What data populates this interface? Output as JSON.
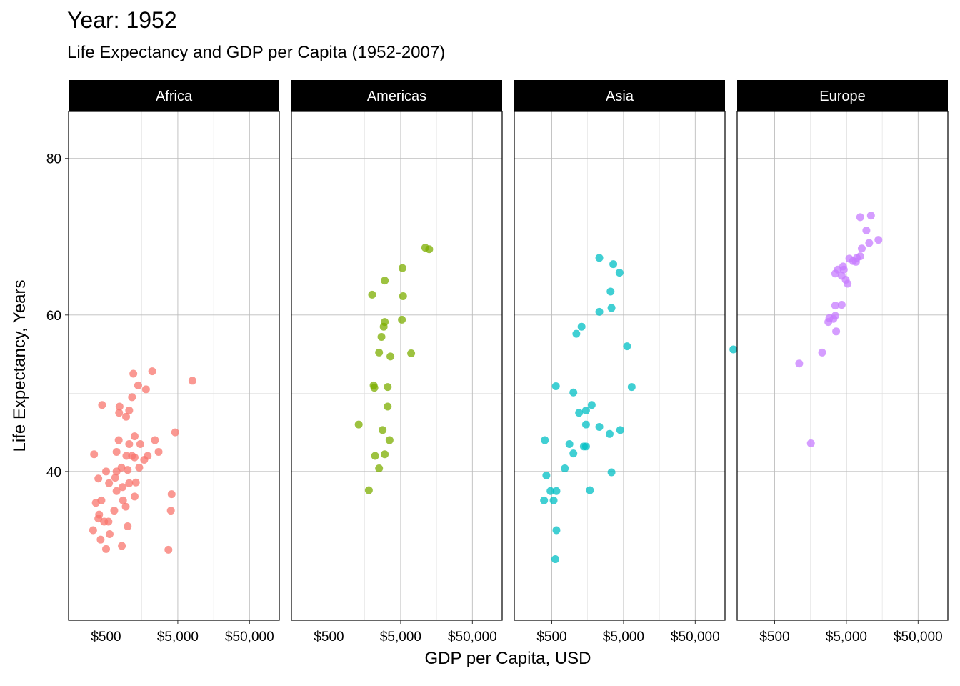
{
  "chart_data": {
    "type": "scatter",
    "title": "Year: 1952",
    "subtitle": "Life Expectancy and GDP per Capita (1952-2007)",
    "xlabel": "GDP per Capita, USD",
    "ylabel": "Life Expectancy, Years",
    "x_scale": "log10",
    "xlim": [
      150,
      130000
    ],
    "ylim": [
      21,
      86
    ],
    "x_ticks": [
      500,
      5000,
      50000
    ],
    "x_tick_labels": [
      "$500",
      "$5,000",
      "$50,000"
    ],
    "y_ticks": [
      40,
      60,
      80
    ],
    "y_tick_labels": [
      "40",
      "60",
      "80"
    ],
    "grid": true,
    "legend": "none",
    "facets": [
      {
        "name": "Africa",
        "color": "#F8766D",
        "points": [
          [
            500,
            30.1
          ],
          [
            420,
            31.3
          ],
          [
            330,
            32.5
          ],
          [
            560,
            32.0
          ],
          [
            1000,
            33.0
          ],
          [
            470,
            33.6
          ],
          [
            540,
            33.6
          ],
          [
            390,
            34.0
          ],
          [
            400,
            34.5
          ],
          [
            650,
            35.0
          ],
          [
            360,
            36.0
          ],
          [
            430,
            36.3
          ],
          [
            940,
            35.5
          ],
          [
            550,
            38.5
          ],
          [
            860,
            36.3
          ],
          [
            1250,
            36.8
          ],
          [
            700,
            37.5
          ],
          [
            390,
            39.1
          ],
          [
            670,
            39.2
          ],
          [
            850,
            38.0
          ],
          [
            1050,
            38.5
          ],
          [
            1300,
            38.6
          ],
          [
            500,
            40.0
          ],
          [
            700,
            40.0
          ],
          [
            820,
            40.5
          ],
          [
            1000,
            40.2
          ],
          [
            1450,
            40.5
          ],
          [
            960,
            42.0
          ],
          [
            1150,
            42.0
          ],
          [
            340,
            42.2
          ],
          [
            1250,
            41.8
          ],
          [
            1900,
            42.0
          ],
          [
            700,
            42.5
          ],
          [
            1050,
            43.5
          ],
          [
            750,
            44.0
          ],
          [
            1250,
            44.5
          ],
          [
            1500,
            43.5
          ],
          [
            2700,
            42.5
          ],
          [
            2400,
            44.0
          ],
          [
            1700,
            41.5
          ],
          [
            760,
            47.5
          ],
          [
            950,
            47.0
          ],
          [
            1050,
            47.8
          ],
          [
            770,
            48.3
          ],
          [
            1400,
            51.0
          ],
          [
            1150,
            49.5
          ],
          [
            1800,
            50.5
          ],
          [
            440,
            48.5
          ],
          [
            2200,
            52.8
          ],
          [
            1200,
            52.5
          ],
          [
            4600,
            45.0
          ],
          [
            4100,
            37.1
          ],
          [
            3700,
            30.0
          ],
          [
            8000,
            51.6
          ],
          [
            830,
            30.5
          ],
          [
            4000,
            35.0
          ]
        ]
      },
      {
        "name": "Americas",
        "color": "#7CAE00",
        "points": [
          [
            1800,
            37.6
          ],
          [
            2500,
            40.4
          ],
          [
            2200,
            42.0
          ],
          [
            3000,
            42.2
          ],
          [
            2800,
            45.3
          ],
          [
            1300,
            46.0
          ],
          [
            3300,
            48.3
          ],
          [
            3500,
            44.0
          ],
          [
            2150,
            50.7
          ],
          [
            2100,
            51.0
          ],
          [
            3300,
            50.8
          ],
          [
            2500,
            55.2
          ],
          [
            3600,
            54.7
          ],
          [
            7000,
            55.1
          ],
          [
            2700,
            57.2
          ],
          [
            2900,
            58.5
          ],
          [
            3000,
            59.1
          ],
          [
            5200,
            59.4
          ],
          [
            5400,
            62.4
          ],
          [
            2000,
            62.6
          ],
          [
            3000,
            64.4
          ],
          [
            5300,
            66.0
          ],
          [
            11000,
            68.6
          ],
          [
            12500,
            68.4
          ]
        ]
      },
      {
        "name": "Asia",
        "color": "#00BFC4",
        "points": [
          [
            560,
            28.8
          ],
          [
            580,
            32.5
          ],
          [
            390,
            36.3
          ],
          [
            530,
            36.3
          ],
          [
            480,
            37.5
          ],
          [
            580,
            37.5
          ],
          [
            1700,
            37.6
          ],
          [
            420,
            39.5
          ],
          [
            760,
            40.4
          ],
          [
            1000,
            42.3
          ],
          [
            400,
            44.0
          ],
          [
            880,
            43.5
          ],
          [
            1500,
            43.2
          ],
          [
            1400,
            43.2
          ],
          [
            3200,
            44.8
          ],
          [
            2300,
            45.7
          ],
          [
            1500,
            46.0
          ],
          [
            4500,
            45.3
          ],
          [
            1200,
            47.5
          ],
          [
            1500,
            47.8
          ],
          [
            1800,
            48.5
          ],
          [
            570,
            50.9
          ],
          [
            1000,
            50.1
          ],
          [
            6500,
            50.8
          ],
          [
            3400,
            39.9
          ],
          [
            5600,
            56.0
          ],
          [
            170000,
            55.6
          ],
          [
            1100,
            57.6
          ],
          [
            1300,
            58.5
          ],
          [
            2300,
            60.4
          ],
          [
            3400,
            60.9
          ],
          [
            3300,
            63.0
          ],
          [
            4400,
            65.4
          ],
          [
            3600,
            66.5
          ],
          [
            2300,
            67.3
          ]
        ]
      },
      {
        "name": "Europe",
        "color": "#C77CFF",
        "points": [
          [
            1600,
            43.6
          ],
          [
            1100,
            53.8
          ],
          [
            2300,
            55.2
          ],
          [
            3600,
            57.9
          ],
          [
            2800,
            59.1
          ],
          [
            3300,
            59.5
          ],
          [
            2900,
            59.6
          ],
          [
            3500,
            59.9
          ],
          [
            3500,
            61.2
          ],
          [
            4300,
            61.3
          ],
          [
            5200,
            64.0
          ],
          [
            4900,
            64.5
          ],
          [
            3500,
            65.3
          ],
          [
            4300,
            65.0
          ],
          [
            3800,
            65.8
          ],
          [
            4600,
            65.8
          ],
          [
            5500,
            67.2
          ],
          [
            6200,
            66.9
          ],
          [
            4500,
            66.2
          ],
          [
            6800,
            66.8
          ],
          [
            7000,
            67.3
          ],
          [
            7800,
            67.5
          ],
          [
            8200,
            68.5
          ],
          [
            10400,
            69.2
          ],
          [
            14000,
            69.6
          ],
          [
            9500,
            70.8
          ],
          [
            11000,
            72.7
          ],
          [
            7800,
            72.5
          ]
        ]
      }
    ]
  }
}
